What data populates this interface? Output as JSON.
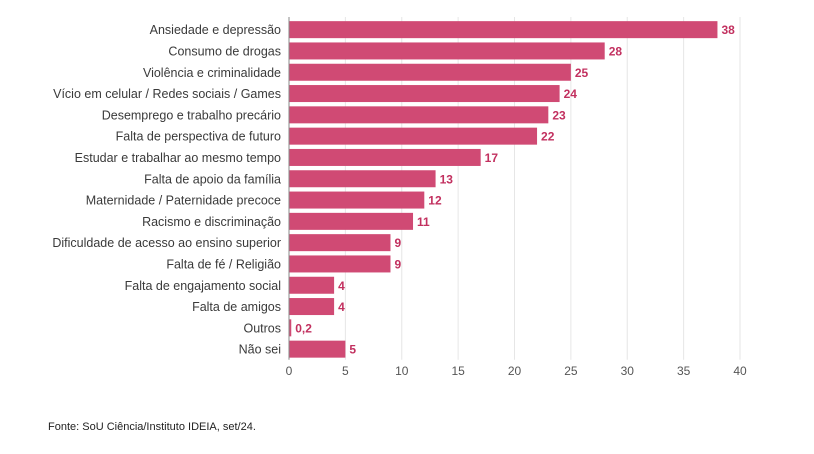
{
  "chart_data": {
    "type": "bar",
    "orientation": "horizontal",
    "categories": [
      "Ansiedade e depressão",
      "Consumo de drogas",
      "Violência e criminalidade",
      "Vício em celular / Redes sociais / Games",
      "Desemprego e trabalho precário",
      "Falta de perspectiva de futuro",
      "Estudar e trabalhar ao mesmo tempo",
      "Falta de apoio da família",
      "Maternidade / Paternidade precoce",
      "Racismo e discriminação",
      "Dificuldade de acesso ao ensino superior",
      "Falta de fé / Religião",
      "Falta de engajamento social",
      "Falta de amigos",
      "Outros",
      "Não sei"
    ],
    "values": [
      38,
      28,
      25,
      24,
      23,
      22,
      17,
      13,
      12,
      11,
      9,
      9,
      4,
      4,
      0.2,
      5
    ],
    "value_labels": [
      "38",
      "28",
      "25",
      "24",
      "23",
      "22",
      "17",
      "13",
      "12",
      "11",
      "9",
      "9",
      "4",
      "4",
      "0,2",
      "5"
    ],
    "xlim": [
      0,
      40
    ],
    "xticks": [
      0,
      5,
      10,
      15,
      20,
      25,
      30,
      35,
      40
    ],
    "grid": true,
    "bar_color": "#d04a74",
    "label_color": "#c2305f"
  },
  "source": "Fonte: SoU Ciência/Instituto IDEIA, set/24."
}
